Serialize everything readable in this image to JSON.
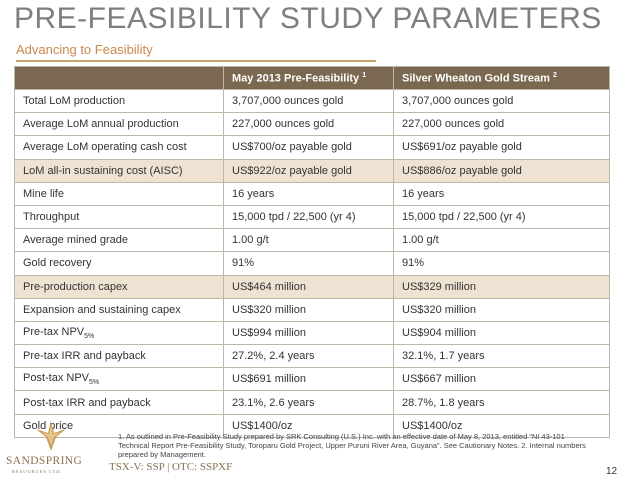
{
  "header": {
    "title": "PRE-FEASIBILITY STUDY PARAMETERS",
    "subtitle": "Advancing to Feasibility"
  },
  "table": {
    "columns": [
      "",
      "May 2013 Pre-Feasibility",
      "Silver Wheaton Gold Stream"
    ],
    "column_superscripts": [
      "",
      "1",
      "2"
    ],
    "rows": [
      {
        "label": "Total LoM production",
        "label_sub": "",
        "c1": "3,707,000 ounces gold",
        "c2": "3,707,000 ounces gold",
        "highlight": false
      },
      {
        "label": "Average LoM annual production",
        "label_sub": "",
        "c1": "227,000 ounces gold",
        "c2": "227,000 ounces gold",
        "highlight": false
      },
      {
        "label": "Average LoM operating cash cost",
        "label_sub": "",
        "c1": "US$700/oz payable gold",
        "c2": "US$691/oz payable gold",
        "highlight": false
      },
      {
        "label": "LoM all-in sustaining cost (AISC)",
        "label_sub": "",
        "c1": "US$922/oz payable gold",
        "c2": "US$886/oz payable gold",
        "highlight": true
      },
      {
        "label": "Mine life",
        "label_sub": "",
        "c1": "16 years",
        "c2": "16 years",
        "highlight": false
      },
      {
        "label": "Throughput",
        "label_sub": "",
        "c1": "15,000 tpd / 22,500 (yr 4)",
        "c2": "15,000 tpd / 22,500 (yr 4)",
        "highlight": false
      },
      {
        "label": "Average mined grade",
        "label_sub": "",
        "c1": "1.00 g/t",
        "c2": "1.00 g/t",
        "highlight": false
      },
      {
        "label": "Gold recovery",
        "label_sub": "",
        "c1": "91%",
        "c2": "91%",
        "highlight": false
      },
      {
        "label": "Pre-production capex",
        "label_sub": "",
        "c1": "US$464 million",
        "c2": "US$329 million",
        "highlight": true
      },
      {
        "label": "Expansion and sustaining capex",
        "label_sub": "",
        "c1": "US$320 million",
        "c2": "US$320 million",
        "highlight": false
      },
      {
        "label": "Pre-tax NPV",
        "label_sub": "5%",
        "c1": "US$994 million",
        "c2": "US$904 million",
        "highlight": false
      },
      {
        "label": "Pre-tax IRR and payback",
        "label_sub": "",
        "c1": "27.2%, 2.4 years",
        "c2": "32.1%, 1.7 years",
        "highlight": false
      },
      {
        "label": "Post-tax NPV",
        "label_sub": "5%",
        "c1": "US$691 million",
        "c2": "US$667 million",
        "highlight": false
      },
      {
        "label": "Post-tax IRR and payback",
        "label_sub": "",
        "c1": "23.1%, 2.6 years",
        "c2": "28.7%, 1.8 years",
        "highlight": false
      },
      {
        "label": "Gold price",
        "label_sub": "",
        "c1": "US$1400/oz",
        "c2": "US$1400/oz",
        "highlight": false
      }
    ]
  },
  "footnote": "1. As outlined in Pre-Feasibility Study prepared by SRK Consulting (U.S.) Inc. with an effective date of May 8, 2013, entitled “NI 43-101 Technical Report Pre-Feasibility Study, Toroparu Gold Project, Upper Puruni River Area, Guyana”. See Cautionary Notes. 2. Internal numbers prepared by Management.",
  "footer": {
    "logo_text": "SANDSPRING",
    "logo_subtext": "RESOURCES LTD.",
    "ticker": "TSX-V: SSP  |  OTC: SSPXF",
    "page_number": "12"
  },
  "colors": {
    "title": "#7f7f7f",
    "accent": "#c9884a",
    "header_bg": "#7b6850",
    "highlight_row": "#eee3d2",
    "logo": "#8a7150"
  },
  "icons": [
    "sandspring-logo-icon"
  ]
}
